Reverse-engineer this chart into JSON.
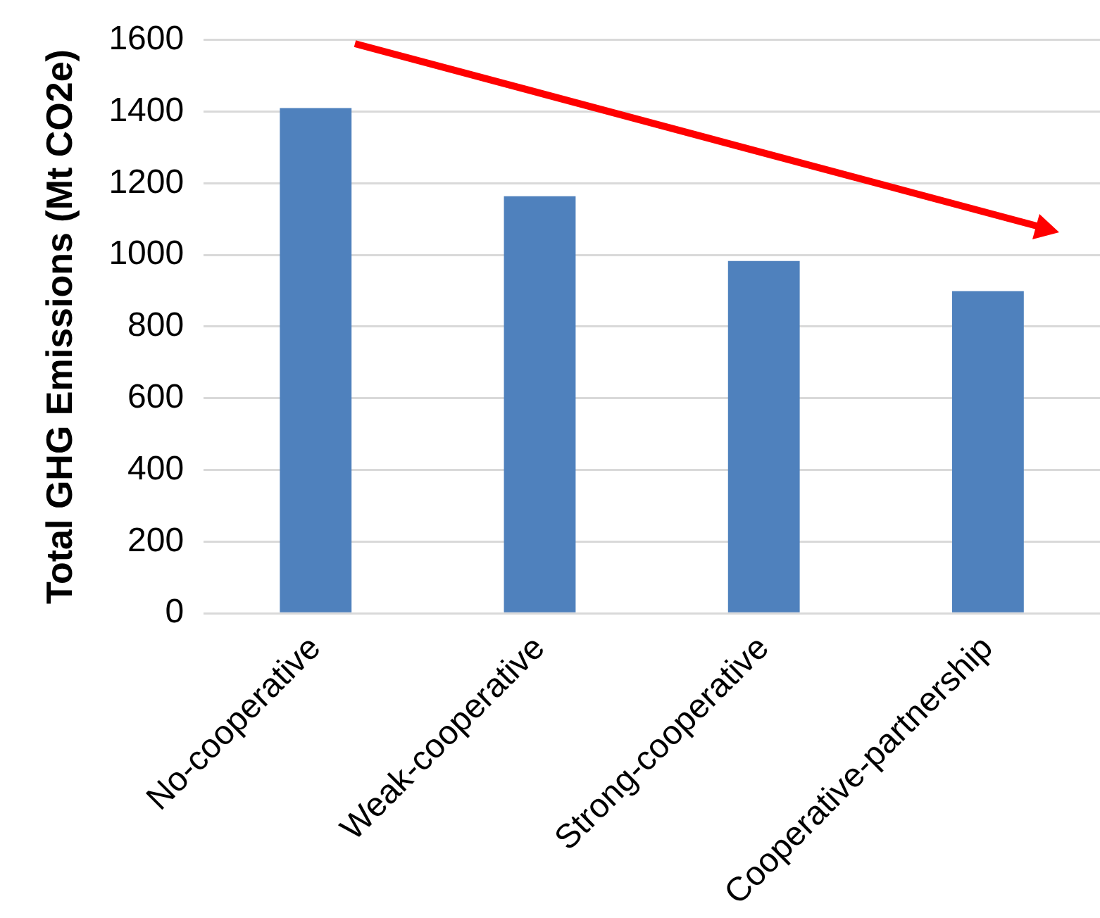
{
  "chart_data": {
    "type": "bar",
    "ylabel": "Total GHG Emissions (Mt CO2e)",
    "categories": [
      "No-cooperative",
      "Weak-cooperative",
      "Strong-cooperative",
      "Cooperative-partnership"
    ],
    "values": [
      1410,
      1164,
      983,
      899
    ],
    "color": "#4f81bd",
    "ylim": [
      0,
      1600
    ],
    "yticks": [
      0,
      200,
      400,
      600,
      800,
      1000,
      1200,
      1400,
      1600
    ],
    "grid": "y"
  }
}
